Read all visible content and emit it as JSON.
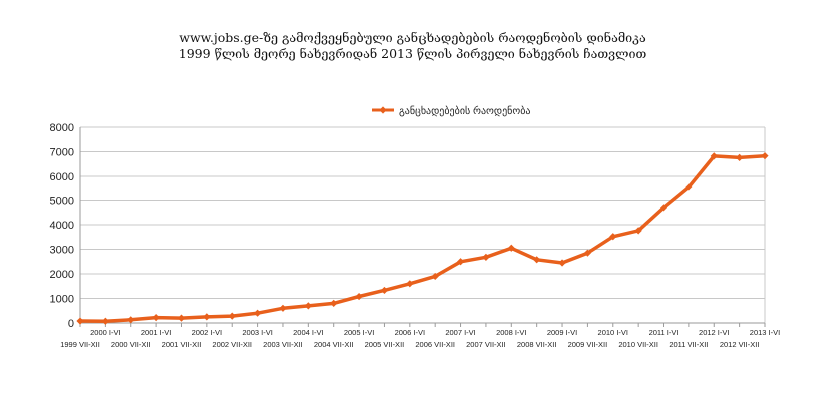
{
  "chart_data": {
    "type": "line",
    "title": "www.jobs.ge-ზე გამოქვეყნებული განცხადებების რაოდენობის დინამიკა",
    "subtitle": "1999 წლის მეორე ნახევრიდან 2013 წლის პირველი ნახევრის ჩათვლით",
    "xlabel": "",
    "ylabel": "",
    "ylim": [
      0,
      8000
    ],
    "yticks": [
      0,
      1000,
      2000,
      3000,
      4000,
      5000,
      6000,
      7000,
      8000
    ],
    "grid": true,
    "legend": "top-center",
    "categories": [
      "1999 VII-XII",
      "2000 I-VI",
      "2000 VII-XII",
      "2001 I-VI",
      "2001 VII-XII",
      "2002 I-VI",
      "2002 VII-XII",
      "2003 I-VI",
      "2003 VII-XII",
      "2004 I-VI",
      "2004 VII-XII",
      "2005 I-VI",
      "2005 VII-XII",
      "2006 I-VI",
      "2006 VII-XII",
      "2007 I-VI",
      "2007 VII-XII",
      "2008 I-VI",
      "2008 VII-XII",
      "2009 I-VI",
      "2009 VII-XII",
      "2010 I-VI",
      "2010 VII-XII",
      "2011 I-VI",
      "2011 VII-XII",
      "2012 I-VI",
      "2012 VII-XII",
      "2013 I-VI"
    ],
    "series": [
      {
        "name": "განცხადებების რაოდენობა",
        "color": "#e8601c",
        "values": [
          80,
          70,
          130,
          220,
          200,
          250,
          280,
          400,
          600,
          700,
          800,
          1080,
          1330,
          1600,
          1900,
          2500,
          2680,
          3050,
          2580,
          2450,
          2850,
          3520,
          3760,
          4700,
          5550,
          6820,
          6760,
          6830
        ]
      }
    ]
  }
}
